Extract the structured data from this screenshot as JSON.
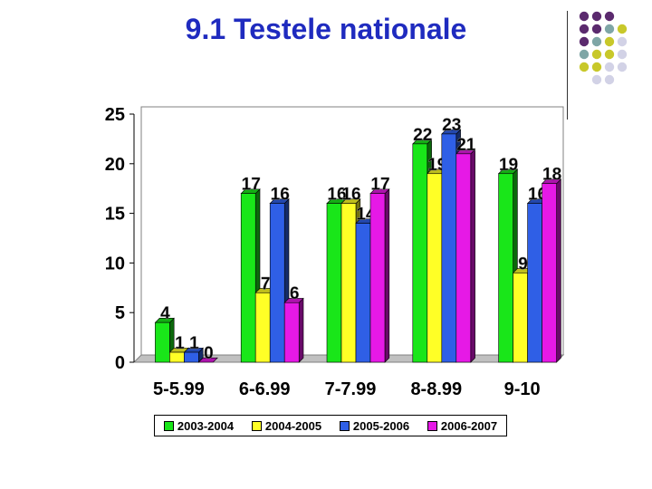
{
  "header": {
    "title": "9.1 Testele nationale"
  },
  "chart_data": {
    "type": "bar",
    "categories": [
      "5-5.99",
      "6-6.99",
      "7-7.99",
      "8-8.99",
      "9-10"
    ],
    "series": [
      {
        "name": "2003-2004",
        "values": [
          4,
          17,
          16,
          22,
          19
        ],
        "labels": [
          "4",
          "17",
          "16",
          "22",
          "19"
        ],
        "color": "#19e619"
      },
      {
        "name": "2004-2005",
        "values": [
          1,
          7,
          16,
          19,
          9
        ],
        "labels": [
          "1",
          "7",
          "16",
          "19",
          "9"
        ],
        "color": "#ffff26"
      },
      {
        "name": "2005-2006",
        "values": [
          1,
          16,
          14,
          23,
          16
        ],
        "labels": [
          "1",
          "16",
          "14",
          "23",
          "16"
        ],
        "color": "#2f5fe6"
      },
      {
        "name": "2006-2007",
        "values": [
          0,
          6,
          17,
          21,
          18
        ],
        "labels": [
          "0",
          "6",
          "17",
          "21",
          "18"
        ],
        "color": "#e619e6"
      }
    ],
    "yticks": [
      "0",
      "5",
      "10",
      "15",
      "20",
      "25"
    ],
    "ylim": [
      0,
      25
    ],
    "grid": false,
    "legend_position": "bottom",
    "bar_style": "3d"
  },
  "decoration": {
    "dot_colors": [
      "#5b2a6e",
      "#7fa6a6",
      "#c8c82a",
      "#d2d2e6"
    ]
  }
}
